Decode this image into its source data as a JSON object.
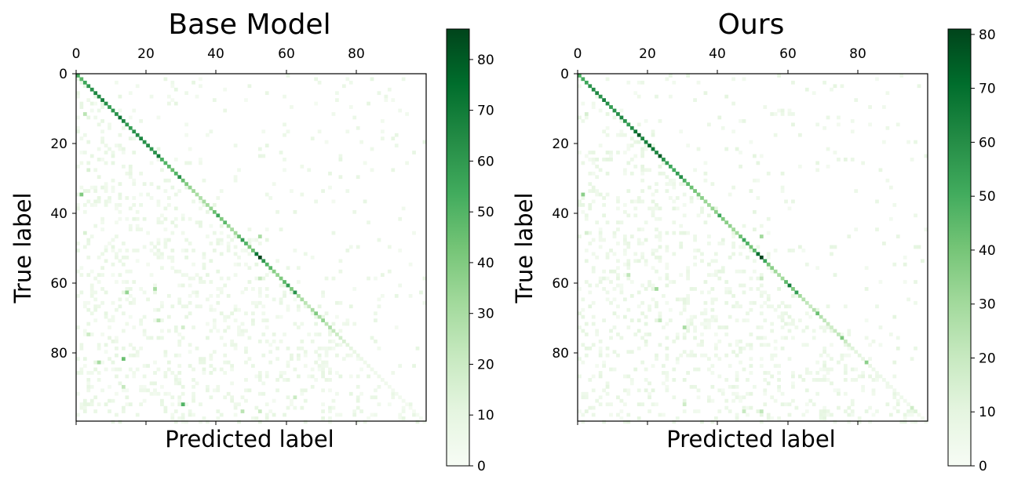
{
  "chart_data": [
    {
      "type": "heatmap",
      "title": "Base Model",
      "xlabel": "Predicted label",
      "ylabel": "True label",
      "n_classes": 100,
      "x_ticks": [
        0,
        20,
        40,
        60,
        80
      ],
      "y_ticks": [
        0,
        20,
        40,
        60,
        80
      ],
      "x_tick_labels": [
        "0",
        "20",
        "40",
        "60",
        "80"
      ],
      "y_tick_labels": [
        "0",
        "20",
        "40",
        "60",
        "80"
      ],
      "colormap": "Greens",
      "colorbar": {
        "min": 0,
        "max": 86,
        "ticks": [
          0,
          10,
          20,
          30,
          40,
          50,
          60,
          70,
          80
        ],
        "tick_labels": [
          "0",
          "10",
          "20",
          "30",
          "40",
          "50",
          "60",
          "70",
          "80"
        ]
      },
      "diagonal": [
        {
          "i": 0,
          "v": 52
        },
        {
          "i": 1,
          "v": 48
        },
        {
          "i": 2,
          "v": 55
        },
        {
          "i": 3,
          "v": 60
        },
        {
          "i": 4,
          "v": 62
        },
        {
          "i": 5,
          "v": 66
        },
        {
          "i": 6,
          "v": 64
        },
        {
          "i": 7,
          "v": 68
        },
        {
          "i": 8,
          "v": 63
        },
        {
          "i": 9,
          "v": 58
        },
        {
          "i": 10,
          "v": 60
        },
        {
          "i": 11,
          "v": 62
        },
        {
          "i": 12,
          "v": 72
        },
        {
          "i": 13,
          "v": 66
        },
        {
          "i": 14,
          "v": 60
        },
        {
          "i": 15,
          "v": 58
        },
        {
          "i": 16,
          "v": 62
        },
        {
          "i": 17,
          "v": 64
        },
        {
          "i": 18,
          "v": 66
        },
        {
          "i": 19,
          "v": 62
        },
        {
          "i": 20,
          "v": 64
        },
        {
          "i": 21,
          "v": 60
        },
        {
          "i": 22,
          "v": 62
        },
        {
          "i": 23,
          "v": 70
        },
        {
          "i": 24,
          "v": 52
        },
        {
          "i": 25,
          "v": 50
        },
        {
          "i": 26,
          "v": 48
        },
        {
          "i": 27,
          "v": 45
        },
        {
          "i": 28,
          "v": 50
        },
        {
          "i": 29,
          "v": 62
        },
        {
          "i": 30,
          "v": 45
        },
        {
          "i": 31,
          "v": 40
        },
        {
          "i": 32,
          "v": 35
        },
        {
          "i": 33,
          "v": 32
        },
        {
          "i": 34,
          "v": 30
        },
        {
          "i": 35,
          "v": 28
        },
        {
          "i": 36,
          "v": 30
        },
        {
          "i": 37,
          "v": 32
        },
        {
          "i": 38,
          "v": 35
        },
        {
          "i": 39,
          "v": 45
        },
        {
          "i": 40,
          "v": 55
        },
        {
          "i": 41,
          "v": 40
        },
        {
          "i": 42,
          "v": 48
        },
        {
          "i": 43,
          "v": 35
        },
        {
          "i": 44,
          "v": 30
        },
        {
          "i": 45,
          "v": 32
        },
        {
          "i": 46,
          "v": 45
        },
        {
          "i": 47,
          "v": 58
        },
        {
          "i": 48,
          "v": 50
        },
        {
          "i": 49,
          "v": 40
        },
        {
          "i": 50,
          "v": 45
        },
        {
          "i": 51,
          "v": 72
        },
        {
          "i": 52,
          "v": 86
        },
        {
          "i": 53,
          "v": 60
        },
        {
          "i": 54,
          "v": 50
        },
        {
          "i": 55,
          "v": 48
        },
        {
          "i": 56,
          "v": 38
        },
        {
          "i": 57,
          "v": 35
        },
        {
          "i": 58,
          "v": 40
        },
        {
          "i": 59,
          "v": 48
        },
        {
          "i": 60,
          "v": 58
        },
        {
          "i": 61,
          "v": 40
        },
        {
          "i": 62,
          "v": 62
        },
        {
          "i": 63,
          "v": 32
        },
        {
          "i": 64,
          "v": 30
        },
        {
          "i": 65,
          "v": 25
        },
        {
          "i": 66,
          "v": 22
        },
        {
          "i": 67,
          "v": 30
        },
        {
          "i": 68,
          "v": 40
        },
        {
          "i": 69,
          "v": 28
        },
        {
          "i": 70,
          "v": 35
        },
        {
          "i": 71,
          "v": 25
        },
        {
          "i": 72,
          "v": 28
        },
        {
          "i": 73,
          "v": 22
        },
        {
          "i": 74,
          "v": 20
        },
        {
          "i": 75,
          "v": 18
        },
        {
          "i": 76,
          "v": 15
        },
        {
          "i": 77,
          "v": 12
        },
        {
          "i": 78,
          "v": 10
        },
        {
          "i": 79,
          "v": 8
        },
        {
          "i": 80,
          "v": 8
        },
        {
          "i": 81,
          "v": 6
        },
        {
          "i": 82,
          "v": 5
        },
        {
          "i": 83,
          "v": 6
        },
        {
          "i": 84,
          "v": 5
        },
        {
          "i": 85,
          "v": 4
        },
        {
          "i": 86,
          "v": 5
        },
        {
          "i": 87,
          "v": 4
        },
        {
          "i": 88,
          "v": 4
        },
        {
          "i": 89,
          "v": 3
        },
        {
          "i": 90,
          "v": 3
        },
        {
          "i": 91,
          "v": 3
        },
        {
          "i": 92,
          "v": 3
        },
        {
          "i": 93,
          "v": 3
        },
        {
          "i": 94,
          "v": 2
        },
        {
          "i": 95,
          "v": 2
        },
        {
          "i": 96,
          "v": 2
        },
        {
          "i": 97,
          "v": 2
        },
        {
          "i": 98,
          "v": 2
        },
        {
          "i": 99,
          "v": 2
        }
      ],
      "off_diagonal": [
        {
          "r": 11,
          "c": 2,
          "v": 25
        },
        {
          "r": 34,
          "c": 1,
          "v": 40
        },
        {
          "r": 62,
          "c": 14,
          "v": 35
        },
        {
          "r": 61,
          "c": 22,
          "v": 30
        },
        {
          "r": 81,
          "c": 13,
          "v": 45
        },
        {
          "r": 94,
          "c": 30,
          "v": 50
        },
        {
          "r": 46,
          "c": 52,
          "v": 30
        },
        {
          "r": 58,
          "c": 52,
          "v": 22
        },
        {
          "r": 70,
          "c": 23,
          "v": 25
        },
        {
          "r": 82,
          "c": 6,
          "v": 30
        },
        {
          "r": 89,
          "c": 13,
          "v": 22
        },
        {
          "r": 92,
          "c": 62,
          "v": 20
        },
        {
          "r": 96,
          "c": 47,
          "v": 25
        },
        {
          "r": 96,
          "c": 52,
          "v": 20
        },
        {
          "r": 74,
          "c": 3,
          "v": 20
        },
        {
          "r": 72,
          "c": 30,
          "v": 18
        },
        {
          "r": 27,
          "c": 3,
          "v": 15
        },
        {
          "r": 45,
          "c": 2,
          "v": 15
        }
      ]
    },
    {
      "type": "heatmap",
      "title": "Ours",
      "xlabel": "Predicted label",
      "ylabel": "True label",
      "n_classes": 100,
      "x_ticks": [
        0,
        20,
        40,
        60,
        80
      ],
      "y_ticks": [
        0,
        20,
        40,
        60,
        80
      ],
      "x_tick_labels": [
        "0",
        "20",
        "40",
        "60",
        "80"
      ],
      "y_tick_labels": [
        "0",
        "20",
        "40",
        "60",
        "80"
      ],
      "colormap": "Greens",
      "colorbar": {
        "min": 0,
        "max": 81,
        "ticks": [
          0,
          10,
          20,
          30,
          40,
          50,
          60,
          70,
          80
        ],
        "tick_labels": [
          "0",
          "10",
          "20",
          "30",
          "40",
          "50",
          "60",
          "70",
          "80"
        ]
      },
      "diagonal": [
        {
          "i": 0,
          "v": 48
        },
        {
          "i": 1,
          "v": 50
        },
        {
          "i": 2,
          "v": 52
        },
        {
          "i": 3,
          "v": 58
        },
        {
          "i": 4,
          "v": 60
        },
        {
          "i": 5,
          "v": 62
        },
        {
          "i": 6,
          "v": 58
        },
        {
          "i": 7,
          "v": 64
        },
        {
          "i": 8,
          "v": 60
        },
        {
          "i": 9,
          "v": 55
        },
        {
          "i": 10,
          "v": 58
        },
        {
          "i": 11,
          "v": 60
        },
        {
          "i": 12,
          "v": 62
        },
        {
          "i": 13,
          "v": 58
        },
        {
          "i": 14,
          "v": 55
        },
        {
          "i": 15,
          "v": 60
        },
        {
          "i": 16,
          "v": 68
        },
        {
          "i": 17,
          "v": 75
        },
        {
          "i": 18,
          "v": 62
        },
        {
          "i": 19,
          "v": 64
        },
        {
          "i": 20,
          "v": 72
        },
        {
          "i": 21,
          "v": 66
        },
        {
          "i": 22,
          "v": 62
        },
        {
          "i": 23,
          "v": 75
        },
        {
          "i": 24,
          "v": 58
        },
        {
          "i": 25,
          "v": 55
        },
        {
          "i": 26,
          "v": 52
        },
        {
          "i": 27,
          "v": 50
        },
        {
          "i": 28,
          "v": 55
        },
        {
          "i": 29,
          "v": 60
        },
        {
          "i": 30,
          "v": 48
        },
        {
          "i": 31,
          "v": 45
        },
        {
          "i": 32,
          "v": 42
        },
        {
          "i": 33,
          "v": 40
        },
        {
          "i": 34,
          "v": 38
        },
        {
          "i": 35,
          "v": 35
        },
        {
          "i": 36,
          "v": 32
        },
        {
          "i": 37,
          "v": 30
        },
        {
          "i": 38,
          "v": 32
        },
        {
          "i": 39,
          "v": 35
        },
        {
          "i": 40,
          "v": 52
        },
        {
          "i": 41,
          "v": 38
        },
        {
          "i": 42,
          "v": 36
        },
        {
          "i": 43,
          "v": 34
        },
        {
          "i": 44,
          "v": 30
        },
        {
          "i": 45,
          "v": 30
        },
        {
          "i": 46,
          "v": 42
        },
        {
          "i": 47,
          "v": 52
        },
        {
          "i": 48,
          "v": 48
        },
        {
          "i": 49,
          "v": 40
        },
        {
          "i": 50,
          "v": 45
        },
        {
          "i": 51,
          "v": 70
        },
        {
          "i": 52,
          "v": 81
        },
        {
          "i": 53,
          "v": 52
        },
        {
          "i": 54,
          "v": 40
        },
        {
          "i": 55,
          "v": 35
        },
        {
          "i": 56,
          "v": 30
        },
        {
          "i": 57,
          "v": 28
        },
        {
          "i": 58,
          "v": 30
        },
        {
          "i": 59,
          "v": 45
        },
        {
          "i": 60,
          "v": 65
        },
        {
          "i": 61,
          "v": 38
        },
        {
          "i": 62,
          "v": 55
        },
        {
          "i": 63,
          "v": 30
        },
        {
          "i": 64,
          "v": 25
        },
        {
          "i": 65,
          "v": 22
        },
        {
          "i": 66,
          "v": 20
        },
        {
          "i": 67,
          "v": 25
        },
        {
          "i": 68,
          "v": 42
        },
        {
          "i": 69,
          "v": 25
        },
        {
          "i": 70,
          "v": 22
        },
        {
          "i": 71,
          "v": 20
        },
        {
          "i": 72,
          "v": 18
        },
        {
          "i": 73,
          "v": 20
        },
        {
          "i": 74,
          "v": 22
        },
        {
          "i": 75,
          "v": 38
        },
        {
          "i": 76,
          "v": 20
        },
        {
          "i": 77,
          "v": 15
        },
        {
          "i": 78,
          "v": 12
        },
        {
          "i": 79,
          "v": 10
        },
        {
          "i": 80,
          "v": 10
        },
        {
          "i": 81,
          "v": 8
        },
        {
          "i": 82,
          "v": 35
        },
        {
          "i": 83,
          "v": 8
        },
        {
          "i": 84,
          "v": 6
        },
        {
          "i": 85,
          "v": 5
        },
        {
          "i": 86,
          "v": 6
        },
        {
          "i": 87,
          "v": 5
        },
        {
          "i": 88,
          "v": 5
        },
        {
          "i": 89,
          "v": 4
        },
        {
          "i": 90,
          "v": 4
        },
        {
          "i": 91,
          "v": 4
        },
        {
          "i": 92,
          "v": 5
        },
        {
          "i": 93,
          "v": 4
        },
        {
          "i": 94,
          "v": 4
        },
        {
          "i": 95,
          "v": 18
        },
        {
          "i": 96,
          "v": 12
        },
        {
          "i": 97,
          "v": 3
        },
        {
          "i": 98,
          "v": 3
        },
        {
          "i": 99,
          "v": 3
        }
      ],
      "off_diagonal": [
        {
          "r": 34,
          "c": 1,
          "v": 35
        },
        {
          "r": 61,
          "c": 22,
          "v": 30
        },
        {
          "r": 46,
          "c": 52,
          "v": 30
        },
        {
          "r": 58,
          "c": 52,
          "v": 20
        },
        {
          "r": 72,
          "c": 30,
          "v": 28
        },
        {
          "r": 70,
          "c": 23,
          "v": 22
        },
        {
          "r": 57,
          "c": 14,
          "v": 22
        },
        {
          "r": 96,
          "c": 52,
          "v": 22
        },
        {
          "r": 96,
          "c": 47,
          "v": 20
        },
        {
          "r": 11,
          "c": 2,
          "v": 15
        },
        {
          "r": 45,
          "c": 2,
          "v": 15
        },
        {
          "r": 94,
          "c": 30,
          "v": 18
        }
      ]
    }
  ]
}
